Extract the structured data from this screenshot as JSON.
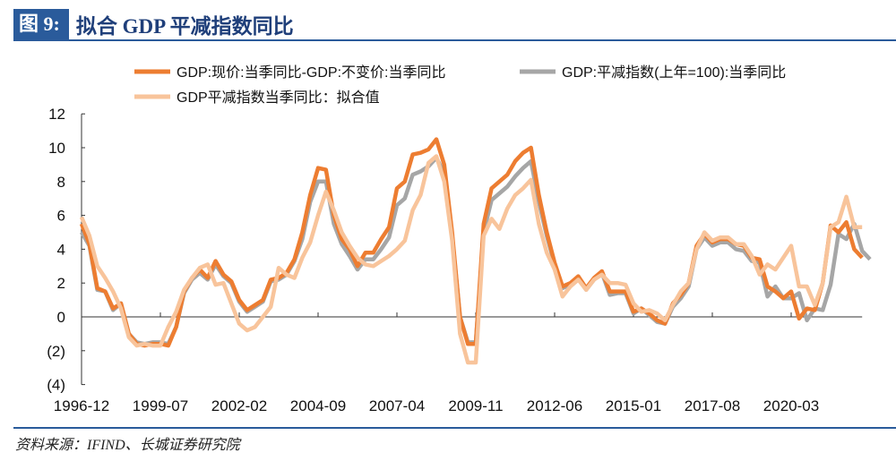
{
  "header": {
    "figure_label": "图 9:",
    "title": "拟合 GDP 平减指数同比"
  },
  "footer": {
    "source": "资料来源：IFIND、长城证券研究院"
  },
  "chart_data": {
    "type": "line",
    "title": "",
    "xlabel": "",
    "ylabel": "",
    "ylim": [
      -4,
      12
    ],
    "yticks": [
      12,
      10,
      8,
      6,
      4,
      2,
      0,
      -2,
      -4
    ],
    "ytick_labels": [
      "12",
      "10",
      "8",
      "6",
      "4",
      "2",
      "0",
      "(2)",
      "(4)"
    ],
    "negative_tick_color": "#ff0000",
    "x_start": "1996-12",
    "x_frequency": "quarterly",
    "xtick_labels": [
      "1996-12",
      "1999-07",
      "2002-02",
      "2004-09",
      "2007-04",
      "2009-11",
      "2012-06",
      "2015-01",
      "2017-08",
      "2020-03"
    ],
    "legend_placement": "top",
    "grid": false,
    "series": [
      {
        "name": "GDP:现价:当季同比-GDP:不变价:当季同比",
        "color": "#ed7d31",
        "values": [
          5.5,
          4.3,
          1.7,
          1.5,
          0.5,
          0.8,
          -1.0,
          -1.6,
          -1.7,
          -1.6,
          -1.6,
          -1.7,
          -0.6,
          1.5,
          2.3,
          2.8,
          2.3,
          3.3,
          2.5,
          2.1,
          1.0,
          0.4,
          0.7,
          1.0,
          2.2,
          2.3,
          2.6,
          3.4,
          5.0,
          7.2,
          8.8,
          8.7,
          6.0,
          4.6,
          4.0,
          3.0,
          3.8,
          3.8,
          4.6,
          5.3,
          7.6,
          8.0,
          9.6,
          9.7,
          9.9,
          10.5,
          9.0,
          5.0,
          0.0,
          -1.6,
          -1.6,
          5.5,
          7.6,
          8.0,
          8.4,
          9.2,
          9.7,
          10.0,
          7.2,
          5.0,
          3.2,
          1.8,
          2.0,
          2.4,
          1.7,
          2.3,
          2.7,
          1.5,
          1.5,
          1.5,
          0.3,
          0.5,
          0.2,
          -0.2,
          -0.4,
          0.8,
          1.3,
          2.0,
          4.2,
          4.9,
          4.4,
          4.6,
          4.6,
          4.3,
          4.2,
          3.5,
          3.4,
          1.8,
          1.5,
          1.1,
          1.5,
          -0.1,
          0.5,
          0.4,
          2.0,
          5.4,
          5.0,
          5.6,
          4.0,
          3.5
        ]
      },
      {
        "name": "GDP:平减指数(上年=100):当季同比",
        "color": "#a6a6a6",
        "values": [
          5.0,
          4.2,
          1.6,
          1.5,
          0.4,
          0.8,
          -1.0,
          -1.5,
          -1.6,
          -1.5,
          -1.5,
          -1.6,
          -0.6,
          1.4,
          2.2,
          2.6,
          2.2,
          3.1,
          2.4,
          2.0,
          0.9,
          0.3,
          0.6,
          0.9,
          2.1,
          2.2,
          2.5,
          3.3,
          4.6,
          6.8,
          8.0,
          8.0,
          5.5,
          4.3,
          3.6,
          2.8,
          3.4,
          3.4,
          4.0,
          4.7,
          6.6,
          7.0,
          8.4,
          8.6,
          8.9,
          9.4,
          8.5,
          4.8,
          0.0,
          -1.5,
          -1.5,
          5.0,
          6.9,
          7.3,
          7.7,
          8.3,
          8.8,
          9.2,
          6.8,
          4.8,
          3.1,
          1.7,
          1.9,
          2.3,
          1.6,
          2.2,
          2.6,
          1.3,
          1.4,
          1.4,
          0.2,
          0.5,
          0.1,
          -0.3,
          -0.4,
          0.6,
          1.1,
          1.8,
          4.0,
          4.7,
          4.2,
          4.4,
          4.4,
          4.0,
          3.9,
          3.3,
          3.2,
          1.2,
          1.8,
          1.1,
          1.1,
          1.4,
          -0.2,
          0.5,
          0.4,
          1.9,
          4.9,
          4.6,
          5.5,
          3.9,
          3.4
        ]
      },
      {
        "name": "GDP平减指数当季同比：拟合值",
        "color": "#f8c49b",
        "values": [
          5.9,
          4.8,
          3.0,
          2.3,
          1.5,
          0.5,
          -1.2,
          -1.7,
          -1.6,
          -1.7,
          -1.7,
          -0.6,
          0.3,
          1.6,
          2.3,
          2.9,
          3.1,
          1.9,
          2.0,
          0.8,
          -0.4,
          -0.8,
          -0.6,
          0.0,
          0.6,
          2.9,
          2.5,
          2.3,
          3.5,
          4.4,
          6.0,
          7.4,
          6.3,
          5.0,
          4.2,
          3.5,
          3.1,
          3.0,
          3.3,
          3.6,
          4.0,
          4.5,
          6.3,
          7.2,
          9.1,
          9.5,
          8.0,
          4.5,
          -1.0,
          -2.7,
          -2.7,
          4.8,
          5.8,
          5.2,
          6.4,
          7.2,
          7.6,
          8.1,
          5.5,
          3.8,
          2.8,
          1.2,
          1.8,
          2.2,
          1.6,
          2.2,
          2.5,
          2.0,
          2.0,
          1.9,
          0.8,
          0.3,
          0.4,
          0.2,
          -0.2,
          0.7,
          1.5,
          2.0,
          4.0,
          5.0,
          4.5,
          4.7,
          4.7,
          4.3,
          4.3,
          3.6,
          2.5,
          3.1,
          2.8,
          3.5,
          4.2,
          1.8,
          1.8,
          0.7,
          2.0,
          5.3,
          5.6,
          7.1,
          5.3,
          5.3
        ]
      }
    ]
  }
}
